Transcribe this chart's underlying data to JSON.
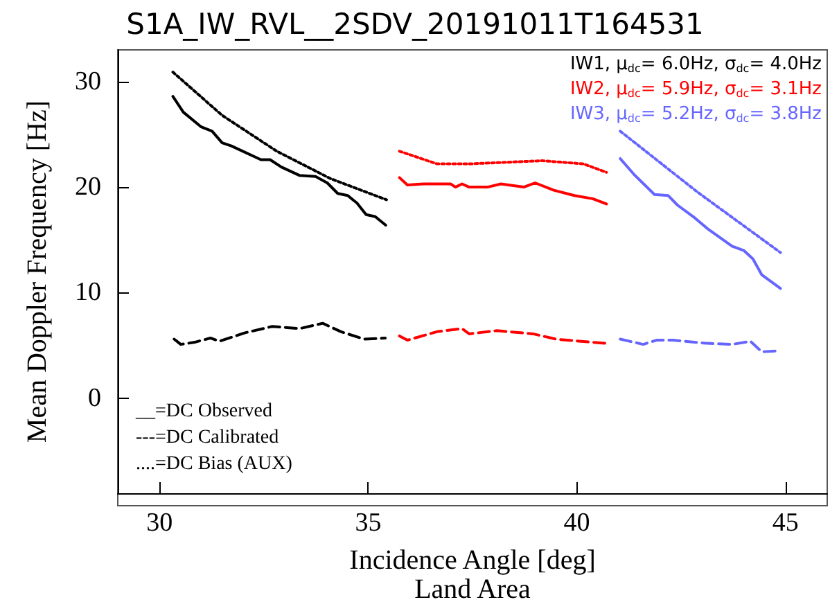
{
  "chart_data": {
    "type": "line",
    "title": "S1A_IW_RVL__2SDV_20191011T164531",
    "xlabel": "Incidence Angle [deg]\nLand Area",
    "ylabel": "Mean Doppler Frequency [Hz]",
    "xlim": [
      29,
      46
    ],
    "xticks": [
      30,
      35,
      40,
      45
    ],
    "ylim": [
      -9,
      33
    ],
    "yticks": [
      0,
      10,
      20,
      30
    ],
    "grid": false,
    "marker": "none",
    "annotations": [
      "IW1, μ$_{dc}$= 6.0Hz, σ$_{dc}$= 4.0Hz",
      "IW2, μ$_{dc}$= 5.9Hz, σ$_{dc}$= 3.1Hz",
      "IW3, μ$_{dc}$= 5.2Hz, σ$_{dc}$= 3.8Hz",
      "__=DC Observed",
      "---=DC Calibrated",
      "....=DC Bias (AUX)"
    ],
    "series": [
      {
        "color": "#000000",
        "line_style": "solid",
        "x": [
          30.32,
          30.57,
          31.0,
          31.26,
          31.5,
          31.72,
          32.43,
          32.65,
          32.92,
          33.36,
          33.74,
          34.02,
          34.27,
          34.51,
          34.73,
          34.95,
          35.17,
          35.42
        ],
        "values": [
          28.6,
          27.1,
          25.7,
          25.3,
          24.2,
          23.9,
          22.6,
          22.6,
          21.9,
          21.1,
          21.0,
          20.4,
          19.4,
          19.2,
          18.5,
          17.4,
          17.2,
          16.4
        ]
      },
      {
        "color": "#000000",
        "line_style": "dashed",
        "x": [
          30.35,
          30.51,
          30.84,
          31.22,
          31.44,
          32.05,
          32.7,
          33.36,
          33.91,
          34.35,
          34.9,
          35.41
        ],
        "values": [
          5.6,
          5.1,
          5.3,
          5.7,
          5.4,
          6.2,
          6.8,
          6.6,
          7.1,
          6.3,
          5.6,
          5.7
        ]
      },
      {
        "color": "#000000",
        "line_style": "dotted",
        "x": [
          30.32,
          31.5,
          32.81,
          34.1,
          35.44
        ],
        "values": [
          30.9,
          26.8,
          23.4,
          20.8,
          18.8
        ]
      },
      {
        "color": "#ff0000",
        "line_style": "solid",
        "x": [
          35.75,
          35.94,
          36.32,
          36.98,
          37.09,
          37.25,
          37.42,
          37.86,
          38.18,
          38.73,
          39.0,
          39.45,
          39.94,
          40.38,
          40.71
        ],
        "values": [
          20.9,
          20.2,
          20.3,
          20.3,
          20.0,
          20.3,
          20.0,
          20.0,
          20.3,
          20.0,
          20.4,
          19.7,
          19.2,
          18.9,
          18.4
        ]
      },
      {
        "color": "#ff0000",
        "line_style": "dashed",
        "x": [
          35.75,
          35.94,
          36.65,
          37.25,
          37.42,
          38.08,
          38.95,
          39.5,
          40.05,
          40.71
        ],
        "values": [
          5.9,
          5.5,
          6.3,
          6.6,
          6.1,
          6.4,
          6.1,
          5.6,
          5.4,
          5.2
        ]
      },
      {
        "color": "#ff0000",
        "line_style": "dotted",
        "x": [
          35.75,
          36.65,
          37.42,
          39.17,
          40.16,
          40.71
        ],
        "values": [
          23.4,
          22.2,
          22.2,
          22.5,
          22.2,
          21.4
        ]
      },
      {
        "color": "#6666ff",
        "line_style": "solid",
        "x": [
          41.04,
          41.37,
          41.86,
          42.19,
          42.41,
          42.79,
          43.12,
          43.72,
          44.0,
          44.22,
          44.43,
          44.88
        ],
        "values": [
          22.7,
          21.2,
          19.3,
          19.2,
          18.3,
          17.2,
          16.1,
          14.4,
          14.0,
          13.2,
          11.7,
          10.4
        ]
      },
      {
        "color": "#6666ff",
        "line_style": "dashed",
        "x": [
          41.04,
          41.59,
          41.91,
          42.3,
          43.12,
          43.72,
          44.16,
          44.43,
          44.88
        ],
        "values": [
          5.6,
          5.1,
          5.5,
          5.5,
          5.2,
          5.1,
          5.4,
          4.4,
          4.5
        ]
      },
      {
        "color": "#6666ff",
        "line_style": "dotted",
        "x": [
          41.04,
          42.9,
          44.88
        ],
        "values": [
          25.3,
          19.5,
          13.8
        ]
      }
    ]
  }
}
